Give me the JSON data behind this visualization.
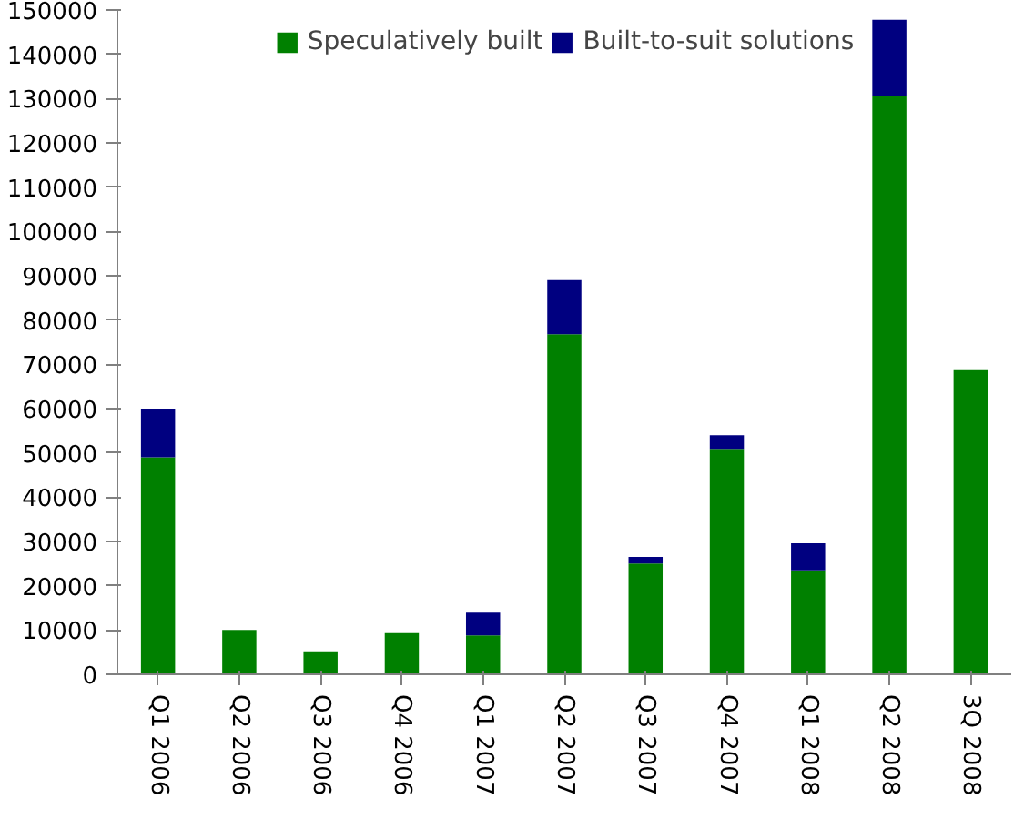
{
  "chart_data": {
    "type": "bar",
    "stacked": true,
    "categories": [
      "Q1 2006",
      "Q2 2006",
      "Q3 2006",
      "Q4 2006",
      "Q1 2007",
      "Q2 2007",
      "Q3 2007",
      "Q4 2007",
      "Q1 2008",
      "Q2 2008",
      "3Q 2008"
    ],
    "series": [
      {
        "name": "Speculatively built",
        "color": "#008000",
        "values": [
          49000,
          10000,
          5200,
          9300,
          8800,
          76800,
          25000,
          50900,
          23500,
          130600,
          68700
        ]
      },
      {
        "name": "Built-to-suit solutions",
        "color": "#000080",
        "values": [
          11000,
          0,
          0,
          0,
          5100,
          12200,
          1500,
          3100,
          6100,
          17200,
          0
        ]
      }
    ],
    "ylim": [
      0,
      150000
    ],
    "yticks": [
      0,
      10000,
      20000,
      30000,
      40000,
      50000,
      60000,
      70000,
      80000,
      90000,
      100000,
      110000,
      120000,
      130000,
      140000,
      150000
    ],
    "legend": "top",
    "grid": false
  }
}
